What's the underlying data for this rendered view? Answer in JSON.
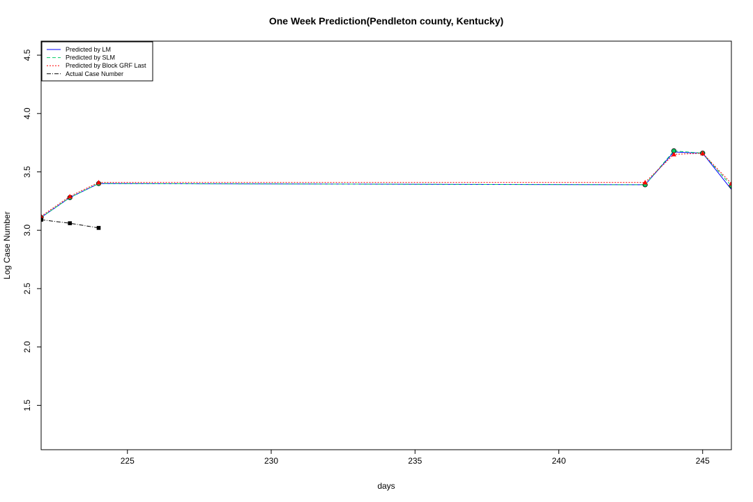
{
  "chart_data": {
    "type": "line",
    "title": "One Week Prediction(Pendleton county, Kentucky)",
    "xlabel": "days",
    "ylabel": "Log Case Number",
    "xlim": [
      222,
      246
    ],
    "ylim": [
      1.12,
      4.62
    ],
    "x_ticks": [
      225,
      230,
      235,
      240,
      245
    ],
    "y_ticks": [
      1.5,
      2.0,
      2.5,
      3.0,
      3.5,
      4.0,
      4.5
    ],
    "legend_position": "top-left",
    "series": [
      {
        "name": "Predicted by LM",
        "color": "#0000ff",
        "line_style": "solid",
        "marker": "none",
        "x": [
          222,
          223,
          224,
          243,
          244,
          245,
          246
        ],
        "y": [
          3.11,
          3.28,
          3.4,
          3.39,
          3.67,
          3.66,
          3.35
        ]
      },
      {
        "name": "Predicted by SLM",
        "color": "#00cc66",
        "line_style": "dashed",
        "marker": "circle",
        "x": [
          222,
          223,
          224,
          243,
          244,
          245,
          246
        ],
        "y": [
          3.11,
          3.28,
          3.4,
          3.39,
          3.68,
          3.66,
          3.38
        ]
      },
      {
        "name": "Predicted by Block GRF Last",
        "color": "#ff0000",
        "line_style": "dotted",
        "marker": "triangle",
        "x": [
          222,
          223,
          224,
          243,
          244,
          245,
          246
        ],
        "y": [
          3.12,
          3.29,
          3.41,
          3.41,
          3.65,
          3.66,
          3.4
        ]
      },
      {
        "name": "Actual Case Number",
        "color": "#000000",
        "line_style": "dashdot",
        "marker": "square",
        "x": [
          222,
          223,
          224
        ],
        "y": [
          3.09,
          3.06,
          3.02
        ]
      }
    ]
  }
}
